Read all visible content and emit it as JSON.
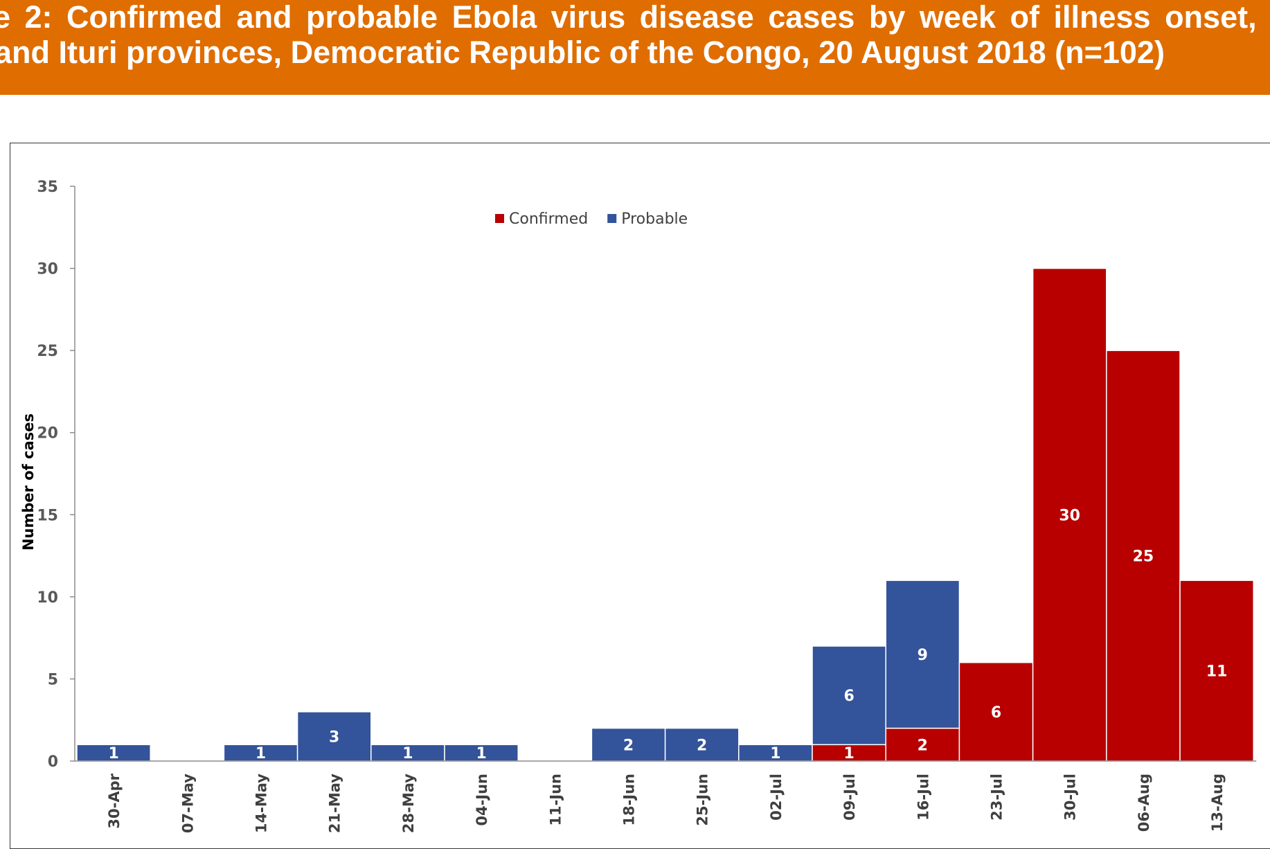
{
  "header": {
    "title_line1": "e 2: Confirmed and probable Ebola virus disease cases by week of illness onset,",
    "title_line2": "and Ituri provinces, Democratic Republic of the Congo, 20 August 2018 (n=102)"
  },
  "chart_data": {
    "type": "bar",
    "stacked": true,
    "categories": [
      "30-Apr",
      "07-May",
      "14-May",
      "21-May",
      "28-May",
      "04-Jun",
      "11-Jun",
      "18-Jun",
      "25-Jun",
      "02-Jul",
      "09-Jul",
      "16-Jul",
      "23-Jul",
      "30-Jul",
      "06-Aug",
      "13-Aug"
    ],
    "series": [
      {
        "name": "Confirmed",
        "color": "#b80000",
        "values": [
          0,
          0,
          0,
          0,
          0,
          0,
          0,
          0,
          0,
          0,
          1,
          2,
          6,
          30,
          25,
          11
        ]
      },
      {
        "name": "Probable",
        "color": "#33539a",
        "values": [
          1,
          0,
          1,
          3,
          1,
          1,
          0,
          2,
          2,
          1,
          6,
          9,
          0,
          0,
          0,
          0
        ]
      }
    ],
    "zero_labels": [
      "0",
      "0"
    ],
    "ylabel": "Number of cases",
    "xlabel": "",
    "ylim": [
      0,
      35
    ],
    "yticks": [
      0,
      5,
      10,
      15,
      20,
      25,
      30,
      35
    ],
    "grid": false,
    "legend_position": "top-center"
  }
}
